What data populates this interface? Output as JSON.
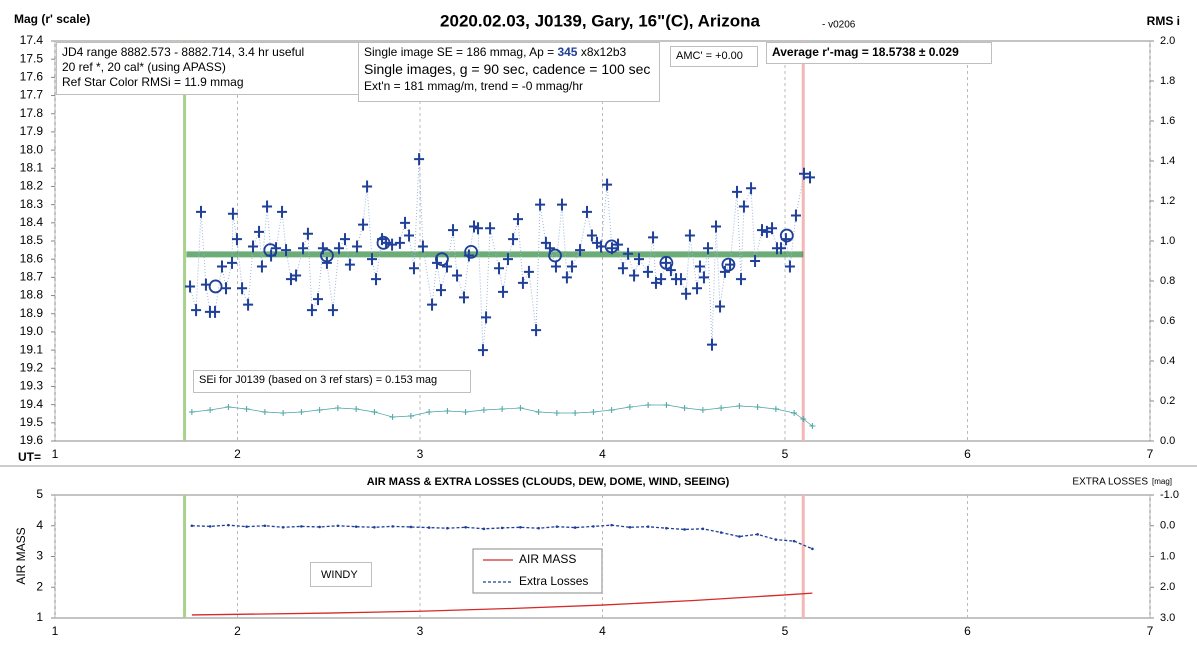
{
  "chart_data": [
    {
      "type": "scatter",
      "title": "2020.02.03, J0139, Gary, 16\"(C), Arizona",
      "subtitle": "- v0206",
      "ylabel": "Mag (r' scale)",
      "y2label": "RMS i",
      "xlabel": "UT=",
      "xlim": [
        1,
        7
      ],
      "xticks": [
        1,
        2,
        3,
        4,
        5,
        6,
        7
      ],
      "ylim": [
        17.4,
        19.6
      ],
      "y_reversed": true,
      "yticks": [
        17.4,
        17.5,
        17.6,
        17.7,
        17.8,
        17.9,
        {
          "value": 18,
          "label": "18.0"
        },
        18.1,
        18.2,
        18.3,
        18.4,
        18.5,
        18.6,
        18.7,
        18.8,
        18.9,
        {
          "value": 19,
          "label": "19.0"
        },
        19.1,
        19.2,
        19.3,
        19.4,
        19.5,
        19.6
      ],
      "y2lim": [
        0,
        2
      ],
      "y2ticks": [
        {
          "value": 0,
          "label": "0.0"
        },
        0.2,
        0.4,
        0.6,
        0.8,
        {
          "value": 1,
          "label": "1.0"
        },
        1.2,
        1.4,
        1.6,
        1.8,
        {
          "value": 2,
          "label": "2.0"
        }
      ],
      "grid": true,
      "vlines": [
        {
          "x": 1.71,
          "color": "#a9d18e"
        },
        {
          "x": 5.1,
          "color": "#f4b6b6"
        }
      ],
      "annotations": {
        "box1": [
          "JD4 range 8882.573 - 8882.714, 3.4 hr useful",
          "20 ref *, 20 cal* (using APASS)",
          "Ref Star Color RMSi = 11.9 mmag"
        ],
        "box2a": [
          "Single image SE = 186 mmag, Ap = ",
          "345",
          " x8x12b3"
        ],
        "box2": [
          "Single images, g = 90 sec, cadence = 100 sec",
          "Ext'n = 181 mmag/m, trend = -0 mmag/hr"
        ],
        "amc": "AMC' = +0.00",
        "average": "Average r'-mag =  18.5738 ± 0.029",
        "sei": "SEi for J0139 (based on 3 ref stars) = 0.153 mag"
      },
      "points": {
        "color": "#1f3f99",
        "x": [
          1.74,
          1.773,
          1.8,
          1.827,
          1.849,
          1.877,
          1.915,
          1.937,
          1.97,
          1.975,
          1.997,
          2.025,
          2.058,
          2.085,
          2.118,
          2.134,
          2.162,
          2.184,
          2.211,
          2.244,
          2.266,
          2.293,
          2.321,
          2.359,
          2.386,
          2.408,
          2.441,
          2.468,
          2.49,
          2.523,
          2.556,
          2.589,
          2.616,
          2.655,
          2.688,
          2.71,
          2.737,
          2.759,
          2.792,
          2.814,
          2.847,
          2.89,
          2.918,
          2.94,
          2.967,
          2.995,
          3.016,
          3.066,
          3.093,
          3.115,
          3.148,
          3.181,
          3.203,
          3.241,
          3.268,
          3.296,
          3.318,
          3.345,
          3.362,
          3.384,
          3.433,
          3.455,
          3.482,
          3.51,
          3.537,
          3.564,
          3.597,
          3.636,
          3.658,
          3.69,
          3.712,
          3.745,
          3.778,
          3.805,
          3.833,
          3.877,
          3.915,
          3.942,
          3.97,
          3.992,
          4.025,
          4.052,
          4.085,
          4.112,
          4.14,
          4.173,
          4.2,
          4.249,
          4.277,
          4.293,
          4.321,
          4.348,
          4.375,
          4.403,
          4.43,
          4.458,
          4.479,
          4.518,
          4.534,
          4.556,
          4.578,
          4.6,
          4.622,
          4.644,
          4.671,
          4.699,
          4.737,
          4.759,
          4.775,
          4.814,
          4.836,
          4.874,
          4.901,
          4.929,
          4.956,
          4.978,
          5.005,
          5.027,
          5.06,
          5.104,
          5.137
        ],
        "y": [
          18.75,
          18.88,
          18.34,
          18.74,
          18.89,
          18.89,
          18.64,
          18.76,
          18.62,
          18.35,
          18.49,
          18.76,
          18.85,
          18.53,
          18.45,
          18.64,
          18.31,
          18.58,
          18.54,
          18.34,
          18.55,
          18.71,
          18.69,
          18.54,
          18.46,
          18.88,
          18.82,
          18.54,
          18.62,
          18.88,
          18.54,
          18.49,
          18.63,
          18.53,
          18.41,
          18.2,
          18.6,
          18.71,
          18.49,
          18.51,
          18.52,
          18.51,
          18.4,
          18.47,
          18.65,
          18.05,
          18.53,
          18.85,
          18.62,
          18.77,
          18.64,
          18.44,
          18.69,
          18.81,
          18.58,
          18.42,
          18.43,
          19.1,
          18.92,
          18.43,
          18.65,
          18.78,
          18.6,
          18.49,
          18.38,
          18.73,
          18.67,
          18.99,
          18.3,
          18.51,
          18.54,
          18.64,
          18.3,
          18.7,
          18.64,
          18.55,
          18.34,
          18.47,
          18.51,
          18.53,
          18.19,
          18.54,
          18.52,
          18.65,
          18.57,
          18.69,
          18.6,
          18.67,
          18.48,
          18.73,
          18.71,
          18.62,
          18.66,
          18.71,
          18.71,
          18.79,
          18.47,
          18.76,
          18.64,
          18.7,
          18.54,
          19.07,
          18.42,
          18.86,
          18.67,
          18.63,
          18.23,
          18.71,
          18.31,
          18.21,
          18.61,
          18.44,
          18.45,
          18.43,
          18.54,
          18.54,
          18.49,
          18.64,
          18.36,
          18.13,
          18.15
        ]
      },
      "averages": {
        "color": "#1f3f99",
        "x": [
          1.88,
          2.18,
          2.49,
          2.8,
          3.12,
          3.28,
          3.74,
          4.05,
          4.35,
          4.69,
          5.01
        ],
        "y": [
          18.75,
          18.55,
          18.58,
          18.51,
          18.6,
          18.56,
          18.58,
          18.53,
          18.62,
          18.63,
          18.47
        ]
      },
      "average_line": {
        "y": 18.5738,
        "x": [
          1.72,
          5.1
        ],
        "color": "#2e8b3e"
      },
      "sei": {
        "axis": "y2",
        "color": "#4aa3a3",
        "x": [
          1.75,
          1.85,
          1.95,
          2.05,
          2.15,
          2.25,
          2.35,
          2.45,
          2.55,
          2.65,
          2.75,
          2.85,
          2.95,
          3.05,
          3.15,
          3.25,
          3.35,
          3.45,
          3.55,
          3.65,
          3.75,
          3.85,
          3.95,
          4.05,
          4.15,
          4.25,
          4.35,
          4.45,
          4.55,
          4.65,
          4.75,
          4.85,
          4.95,
          5.05,
          5.1,
          5.15
        ],
        "values": [
          0.145,
          0.155,
          0.17,
          0.16,
          0.145,
          0.14,
          0.145,
          0.155,
          0.165,
          0.16,
          0.145,
          0.12,
          0.125,
          0.145,
          0.15,
          0.145,
          0.155,
          0.16,
          0.165,
          0.145,
          0.14,
          0.14,
          0.145,
          0.155,
          0.17,
          0.18,
          0.18,
          0.165,
          0.155,
          0.165,
          0.175,
          0.17,
          0.16,
          0.14,
          0.11,
          0.075
        ]
      }
    },
    {
      "type": "line",
      "title": "AIR MASS & EXTRA LOSSES (CLOUDS, DEW, DOME, WIND, SEEING)",
      "ylabel": "AIR MASS",
      "y2label": "EXTRA LOSSES",
      "y2unit": "[mag]",
      "xlim": [
        1,
        7
      ],
      "xticks": [
        1,
        2,
        3,
        4,
        5,
        6,
        7
      ],
      "ylim": [
        1,
        5
      ],
      "yticks": [
        1,
        2,
        3,
        4,
        5
      ],
      "y2lim": [
        -1,
        3
      ],
      "y2_reversed": true,
      "y2ticks": [
        {
          "value": -1,
          "label": "-1.0"
        },
        {
          "value": 0,
          "label": "0.0"
        },
        {
          "value": 1,
          "label": "1.0"
        },
        {
          "value": 2,
          "label": "2.0"
        },
        {
          "value": 3,
          "label": "3.0"
        }
      ],
      "grid": true,
      "vlines": [
        {
          "x": 1.71,
          "color": "#a9d18e"
        },
        {
          "x": 5.1,
          "color": "#f4b6b6"
        }
      ],
      "annotation": "WINDY",
      "series": [
        {
          "name": "AIR MASS",
          "color": "#d42a2a",
          "x": [
            1.75,
            2.0,
            2.5,
            3.0,
            3.5,
            4.0,
            4.5,
            5.0,
            5.15
          ],
          "values": [
            1.1,
            1.12,
            1.16,
            1.22,
            1.31,
            1.42,
            1.57,
            1.75,
            1.81
          ]
        },
        {
          "name": "Extra Losses",
          "color": "#1f3f99",
          "axis": "y2",
          "dashed": true,
          "x": [
            1.75,
            1.85,
            1.95,
            2.05,
            2.15,
            2.25,
            2.35,
            2.45,
            2.55,
            2.65,
            2.75,
            2.85,
            2.95,
            3.05,
            3.15,
            3.25,
            3.35,
            3.45,
            3.55,
            3.65,
            3.75,
            3.85,
            3.95,
            4.05,
            4.15,
            4.25,
            4.35,
            4.45,
            4.55,
            4.65,
            4.75,
            4.85,
            4.95,
            5.05,
            5.15
          ],
          "values": [
            0,
            0.02,
            -0.02,
            0.03,
            0,
            0.05,
            0.02,
            0.04,
            0,
            0.03,
            0.05,
            0.02,
            0.04,
            0.06,
            0.08,
            0.05,
            0.1,
            0.07,
            0.05,
            0.08,
            0.03,
            0.06,
            0.02,
            -0.02,
            0.05,
            0.03,
            0.08,
            0.12,
            0.1,
            0.22,
            0.35,
            0.28,
            0.45,
            0.5,
            0.75
          ]
        }
      ]
    }
  ]
}
